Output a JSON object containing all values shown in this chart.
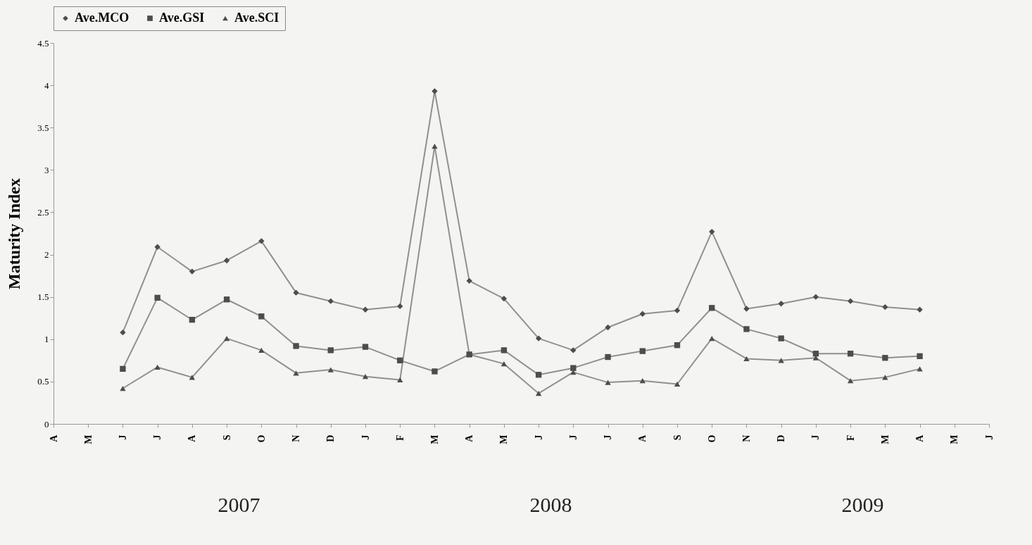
{
  "chart_data": {
    "type": "line",
    "ylabel": "Maturity Index",
    "categories": [
      "A",
      "M",
      "J",
      "J",
      "A",
      "S",
      "O",
      "N",
      "D",
      "J",
      "F",
      "M",
      "A",
      "M",
      "J",
      "J",
      "J",
      "A",
      "S",
      "O",
      "N",
      "D",
      "J",
      "F",
      "M",
      "A",
      "M",
      "J"
    ],
    "series": [
      {
        "name": "Ave.MCO",
        "color": "#4d4d4d",
        "marker": "diamond",
        "values": [
          null,
          null,
          1.08,
          2.09,
          1.8,
          1.93,
          2.16,
          1.55,
          1.45,
          1.35,
          1.39,
          3.93,
          1.69,
          1.48,
          1.01,
          0.87,
          1.14,
          1.3,
          1.34,
          2.27,
          1.36,
          1.42,
          1.5,
          1.45,
          1.38,
          1.35,
          null,
          null
        ]
      },
      {
        "name": "Ave.GSI",
        "color": "#4d4d4d",
        "marker": "square",
        "values": [
          null,
          null,
          0.65,
          1.49,
          1.23,
          1.47,
          1.27,
          0.92,
          0.87,
          0.91,
          0.75,
          0.62,
          0.82,
          0.87,
          0.58,
          0.66,
          0.79,
          0.86,
          0.93,
          1.37,
          1.12,
          1.01,
          0.83,
          0.83,
          0.78,
          0.8,
          null,
          null
        ]
      },
      {
        "name": "Ave.SCI",
        "color": "#4d4d4d",
        "marker": "triangle",
        "values": [
          null,
          null,
          0.42,
          0.67,
          0.55,
          1.01,
          0.87,
          0.6,
          0.64,
          0.56,
          0.52,
          3.28,
          0.82,
          0.71,
          0.36,
          0.61,
          0.49,
          0.51,
          0.47,
          1.01,
          0.77,
          0.75,
          0.78,
          0.51,
          0.55,
          0.65,
          null,
          null
        ]
      }
    ],
    "ylim": [
      0,
      4.5
    ],
    "yticks": [
      0,
      0.5,
      1,
      1.5,
      2,
      2.5,
      3,
      3.5,
      4,
      4.5
    ],
    "grid": false,
    "legend": "top",
    "annotations": [
      "2007",
      "2008",
      "2009"
    ]
  }
}
